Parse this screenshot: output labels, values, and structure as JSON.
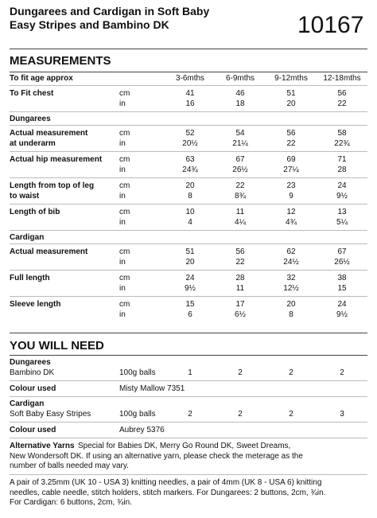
{
  "header": {
    "title_lines": [
      "Dungarees and Cardigan in Soft Baby",
      "Easy Stripes and Bambino DK"
    ],
    "pattern_number": "10167"
  },
  "measurements": {
    "heading": "MEASUREMENTS",
    "age_label": "To fit age approx",
    "sizes": [
      "3-6mths",
      "6-9mths",
      "9-12mths",
      "12-18mths"
    ],
    "rows": [
      {
        "label": [
          "To Fit chest"
        ],
        "units": [
          "cm",
          "in"
        ],
        "values": [
          [
            "41",
            "46",
            "51",
            "56"
          ],
          [
            "16",
            "18",
            "20",
            "22"
          ]
        ]
      },
      {
        "section": "Dungarees"
      },
      {
        "label": [
          "Actual measurement",
          "at underarm"
        ],
        "units": [
          "cm",
          "in"
        ],
        "values": [
          [
            "52",
            "54",
            "56",
            "58"
          ],
          [
            "20½",
            "21¼",
            "22",
            "22¾"
          ]
        ]
      },
      {
        "label": [
          "Actual hip measurement"
        ],
        "units": [
          "cm",
          "in"
        ],
        "values": [
          [
            "63",
            "67",
            "69",
            "71"
          ],
          [
            "24¾",
            "26½",
            "27¼",
            "28"
          ]
        ]
      },
      {
        "label": [
          "Length from top of leg",
          "to waist"
        ],
        "units": [
          "cm",
          "in"
        ],
        "values": [
          [
            "20",
            "22",
            "23",
            "24"
          ],
          [
            "8",
            "8¾",
            "9",
            "9½"
          ]
        ]
      },
      {
        "label": [
          "Length of bib"
        ],
        "units": [
          "cm",
          "in"
        ],
        "values": [
          [
            "10",
            "11",
            "12",
            "13"
          ],
          [
            "4",
            "4¼",
            "4¾",
            "5¼"
          ]
        ]
      },
      {
        "section": "Cardigan"
      },
      {
        "label": [
          "Actual measurement"
        ],
        "units": [
          "cm",
          "in"
        ],
        "values": [
          [
            "51",
            "56",
            "62",
            "67"
          ],
          [
            "20",
            "22",
            "24½",
            "26½"
          ]
        ]
      },
      {
        "label": [
          "Full length"
        ],
        "units": [
          "cm",
          "in"
        ],
        "values": [
          [
            "24",
            "28",
            "32",
            "38"
          ],
          [
            "9½",
            "11",
            "12½",
            "15"
          ]
        ]
      },
      {
        "label": [
          "Sleeve length"
        ],
        "units": [
          "cm",
          "in"
        ],
        "values": [
          [
            "15",
            "17",
            "20",
            "24"
          ],
          [
            "6",
            "6½",
            "8",
            "9½"
          ]
        ]
      }
    ]
  },
  "you_will_need": {
    "heading": "YOU WILL NEED",
    "groups": [
      {
        "section": "Dungarees",
        "yarn": "Bambino DK",
        "unit": "100g balls",
        "values": [
          "1",
          "2",
          "2",
          "2"
        ],
        "colour_label": "Colour used",
        "colour": "Misty Mallow 7351"
      },
      {
        "section": "Cardigan",
        "yarn": "Soft Baby Easy Stripes",
        "unit": "100g balls",
        "values": [
          "2",
          "2",
          "2",
          "3"
        ],
        "colour_label": "Colour used",
        "colour": "Aubrey 5376"
      }
    ],
    "alternative_yarns": {
      "label": "Alternative Yarns",
      "lines": [
        "Special for Babies DK, Merry Go Round DK, Sweet Dreams,",
        "New Wondersoft DK. If using an alternative yarn, please check the meterage as the",
        "number of balls needed may vary."
      ]
    },
    "needles_lines": [
      "A pair of 3.25mm (UK 10 - USA 3) knitting needles, a pair of 4mm (UK 8 - USA 6) knitting",
      "needles, cable needle, stitch holders, stitch markers. For Dungarees: 2 buttons, 2cm, ¾in.",
      "For Cardigan: 6 buttons, 2cm, ¾in."
    ]
  }
}
